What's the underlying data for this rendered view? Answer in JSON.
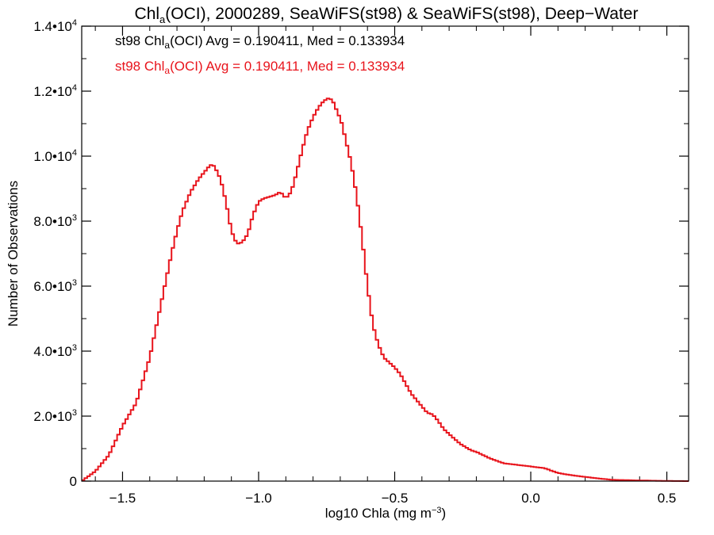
{
  "chart_data": {
    "type": "line",
    "title_main": "Chl",
    "title_sub": "a",
    "title_rest": "(OCI), 2000289, SeaWiFS(st98) & SeaWiFS(st98), Deep−Water",
    "xlabel_main": "log10 Chla (mg m",
    "xlabel_sup": "−3",
    "xlabel_end": ")",
    "ylabel": "Number of Observations",
    "xlim": [
      -1.65,
      0.58
    ],
    "ylim": [
      0,
      14000
    ],
    "x_ticks": [
      -1.5,
      -1.0,
      -0.5,
      0.0,
      0.5
    ],
    "x_tick_labels": [
      "−1.5",
      "−1.0",
      "−0.5",
      "0.0",
      "0.5"
    ],
    "y_ticks": [
      {
        "value": 0,
        "label": "0",
        "exp": ""
      },
      {
        "value": 2000,
        "label": "2.0•10",
        "exp": "3"
      },
      {
        "value": 4000,
        "label": "4.0•10",
        "exp": "3"
      },
      {
        "value": 6000,
        "label": "6.0•10",
        "exp": "3"
      },
      {
        "value": 8000,
        "label": "8.0•10",
        "exp": "3"
      },
      {
        "value": 10000,
        "label": "1.0•10",
        "exp": "4"
      },
      {
        "value": 12000,
        "label": "1.2•10",
        "exp": "4"
      },
      {
        "value": 14000,
        "label": "1.4•10",
        "exp": "4"
      }
    ],
    "legend": [
      {
        "pre": "st98 Chl",
        "sub": "a",
        "post": "(OCI) Avg = 0.190411, Med = 0.133934",
        "color": "#000000"
      },
      {
        "pre": "st98 Chl",
        "sub": "a",
        "post": "(OCI) Avg = 0.190411, Med = 0.133934",
        "color": "#e8141c"
      }
    ],
    "series": [
      {
        "color": "#e8141c",
        "x": [
          -1.65,
          -1.6,
          -1.55,
          -1.5,
          -1.45,
          -1.4,
          -1.35,
          -1.32,
          -1.3,
          -1.28,
          -1.25,
          -1.22,
          -1.2,
          -1.18,
          -1.17,
          -1.16,
          -1.14,
          -1.12,
          -1.1,
          -1.08,
          -1.06,
          -1.04,
          -1.02,
          -1.0,
          -0.98,
          -0.96,
          -0.94,
          -0.92,
          -0.9,
          -0.88,
          -0.86,
          -0.84,
          -0.82,
          -0.8,
          -0.78,
          -0.76,
          -0.74,
          -0.73,
          -0.72,
          -0.71,
          -0.7,
          -0.68,
          -0.66,
          -0.64,
          -0.62,
          -0.6,
          -0.58,
          -0.56,
          -0.54,
          -0.52,
          -0.5,
          -0.48,
          -0.46,
          -0.44,
          -0.42,
          -0.4,
          -0.38,
          -0.36,
          -0.34,
          -0.32,
          -0.3,
          -0.28,
          -0.26,
          -0.24,
          -0.22,
          -0.2,
          -0.15,
          -0.1,
          -0.05,
          0.0,
          0.05,
          0.1,
          0.15,
          0.2,
          0.25,
          0.3,
          0.4,
          0.5,
          0.58
        ],
        "y": [
          0,
          300,
          800,
          1700,
          2400,
          3800,
          5800,
          7000,
          7700,
          8300,
          8900,
          9300,
          9500,
          9700,
          9750,
          9650,
          9300,
          8600,
          7700,
          7300,
          7350,
          7600,
          8200,
          8600,
          8700,
          8750,
          8800,
          8900,
          8700,
          8900,
          9500,
          10200,
          10800,
          11200,
          11500,
          11700,
          11800,
          11700,
          11600,
          11300,
          11200,
          10500,
          9800,
          8800,
          7500,
          6000,
          4800,
          4200,
          3800,
          3650,
          3500,
          3300,
          3000,
          2700,
          2500,
          2300,
          2100,
          2050,
          1850,
          1600,
          1450,
          1300,
          1150,
          1050,
          950,
          900,
          700,
          550,
          500,
          450,
          400,
          250,
          180,
          130,
          80,
          40,
          20,
          5,
          0
        ]
      }
    ]
  }
}
